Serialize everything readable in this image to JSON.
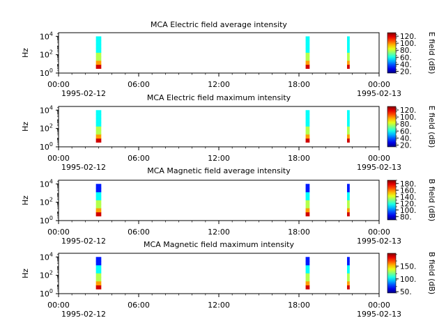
{
  "chart_data": [
    {
      "type": "heatmap",
      "title": "MCA  Electric field average intensity",
      "ylabel": "Hz",
      "y_ticks": [
        "10^0",
        "10^2",
        "10^4"
      ],
      "x_ticks": [
        "00:00",
        "06:00",
        "12:00",
        "18:00",
        "00:00"
      ],
      "x_dates": [
        "1995-02-12",
        "1995-02-13"
      ],
      "xlim_hours": [
        0,
        24
      ],
      "ylim_log10_hz": [
        0,
        4.4
      ],
      "colorbar_label": "E field (dB)",
      "colorbar_ticks": [
        20,
        40,
        60,
        80,
        100,
        120
      ],
      "colorbar_range": [
        15,
        130
      ],
      "data_bursts": [
        {
          "start_hour": 2.8,
          "end_hour": 3.2
        },
        {
          "start_hour": 18.5,
          "end_hour": 18.8
        },
        {
          "start_hour": 21.6,
          "end_hour": 21.8
        }
      ]
    },
    {
      "type": "heatmap",
      "title": "MCA  Electric field maximum intensity",
      "ylabel": "Hz",
      "y_ticks": [
        "10^0",
        "10^2",
        "10^4"
      ],
      "x_ticks": [
        "00:00",
        "06:00",
        "12:00",
        "18:00",
        "00:00"
      ],
      "x_dates": [
        "1995-02-12",
        "1995-02-13"
      ],
      "xlim_hours": [
        0,
        24
      ],
      "ylim_log10_hz": [
        0,
        4.4
      ],
      "colorbar_label": "E field (dB)",
      "colorbar_ticks": [
        20,
        40,
        60,
        80,
        100,
        120
      ],
      "colorbar_range": [
        15,
        130
      ],
      "data_bursts": [
        {
          "start_hour": 2.8,
          "end_hour": 3.2
        },
        {
          "start_hour": 18.5,
          "end_hour": 18.8
        },
        {
          "start_hour": 21.6,
          "end_hour": 21.8
        }
      ]
    },
    {
      "type": "heatmap",
      "title": "MCA  Magnetic field average intensity",
      "ylabel": "Hz",
      "y_ticks": [
        "10^0",
        "10^2",
        "10^4"
      ],
      "x_ticks": [
        "00:00",
        "06:00",
        "12:00",
        "18:00",
        "00:00"
      ],
      "x_dates": [
        "1995-02-12",
        "1995-02-13"
      ],
      "xlim_hours": [
        0,
        24
      ],
      "ylim_log10_hz": [
        0,
        4.4
      ],
      "colorbar_label": "B field (dB)",
      "colorbar_ticks": [
        80,
        100,
        120,
        140,
        160,
        180
      ],
      "colorbar_range": [
        70,
        190
      ],
      "data_bursts": [
        {
          "start_hour": 2.8,
          "end_hour": 3.2
        },
        {
          "start_hour": 18.5,
          "end_hour": 18.8
        },
        {
          "start_hour": 21.6,
          "end_hour": 21.8
        }
      ]
    },
    {
      "type": "heatmap",
      "title": "MCA  Magnetic field maximum intensity",
      "ylabel": "Hz",
      "y_ticks": [
        "10^0",
        "10^2",
        "10^4"
      ],
      "x_ticks": [
        "00:00",
        "06:00",
        "12:00",
        "18:00",
        "00:00"
      ],
      "x_dates": [
        "1995-02-12",
        "1995-02-13"
      ],
      "xlim_hours": [
        0,
        24
      ],
      "ylim_log10_hz": [
        0,
        4.4
      ],
      "colorbar_label": "B field (dB)",
      "colorbar_ticks": [
        50,
        100,
        150
      ],
      "colorbar_range": [
        45,
        200
      ],
      "data_bursts": [
        {
          "start_hour": 2.8,
          "end_hour": 3.2
        },
        {
          "start_hour": 18.5,
          "end_hour": 18.8
        },
        {
          "start_hour": 21.6,
          "end_hour": 21.8
        }
      ]
    }
  ]
}
